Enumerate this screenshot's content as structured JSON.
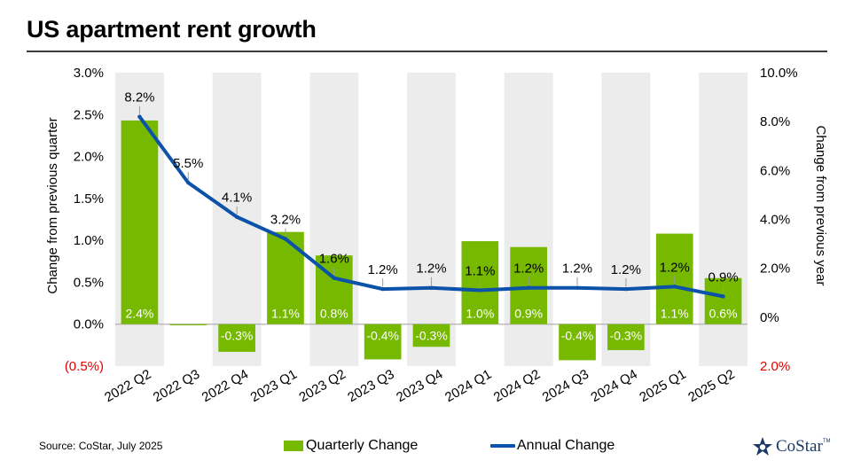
{
  "title": "US apartment rent growth",
  "source": "Source: CoStar, July 2025",
  "legend": {
    "quarterly": "Quarterly Change",
    "annual": "Annual Change"
  },
  "logo": {
    "text": "CoStar",
    "tm": "TM"
  },
  "colors": {
    "bar": "#76b900",
    "line": "#0b52a8",
    "band": "#ececec",
    "negative_tick": "#e00000",
    "title_rule": "#3c3c3c"
  },
  "chart_data": {
    "type": "bar",
    "title": "US apartment rent growth",
    "categories": [
      "2022 Q2",
      "2022 Q3",
      "2022 Q4",
      "2023 Q1",
      "2023 Q2",
      "2023 Q3",
      "2023 Q4",
      "2024 Q1",
      "2024 Q2",
      "2024 Q3",
      "2024 Q4",
      "2025 Q1",
      "2025 Q2"
    ],
    "series": [
      {
        "name": "Quarterly Change",
        "type": "bar",
        "axis": "left",
        "values": [
          2.43,
          0.0,
          -0.33,
          1.1,
          0.82,
          -0.42,
          -0.27,
          0.99,
          0.92,
          -0.43,
          -0.31,
          1.08,
          0.55
        ],
        "labels": [
          "2.4%",
          "",
          "-0.3%",
          "1.1%",
          "0.8%",
          "-0.4%",
          "-0.3%",
          "1.0%",
          "0.9%",
          "-0.4%",
          "-0.3%",
          "1.1%",
          "0.6%"
        ]
      },
      {
        "name": "Annual Change",
        "type": "line",
        "axis": "right",
        "values": [
          8.2,
          5.5,
          4.1,
          3.2,
          1.6,
          1.15,
          1.2,
          1.1,
          1.2,
          1.2,
          1.15,
          1.25,
          0.85
        ],
        "labels": [
          "8.2%",
          "5.5%",
          "4.1%",
          "3.2%",
          "1.6%",
          "1.2%",
          "1.2%",
          "1.1%",
          "1.2%",
          "1.2%",
          "1.2%",
          "1.2%",
          "0.9%"
        ]
      }
    ],
    "y_left": {
      "label": "Change from previous quarter",
      "ylim": [
        -0.5,
        3.0
      ],
      "ticks": [
        3.0,
        2.5,
        2.0,
        1.5,
        1.0,
        0.5,
        0.0,
        -0.5
      ],
      "tick_labels": [
        "3.0%",
        "2.5%",
        "2.0%",
        "1.5%",
        "1.0%",
        "0.5%",
        "0.0%",
        "(0.5%)"
      ]
    },
    "y_right": {
      "label": "Change from previous year",
      "ylim": [
        -2.0,
        10.0
      ],
      "ticks": [
        10,
        8,
        6,
        4,
        2,
        0,
        -2
      ],
      "tick_labels": [
        "10.0%",
        "8.0%",
        "6.0%",
        "4.0%",
        "2.0%",
        "0%",
        "2.0%"
      ]
    },
    "grid": false,
    "alternating_bands": true,
    "legend_position": "bottom"
  }
}
